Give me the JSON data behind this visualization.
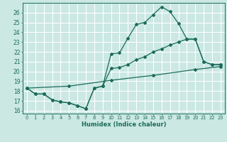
{
  "xlabel": "Humidex (Indice chaleur)",
  "background_color": "#cbe8e3",
  "grid_color": "#ffffff",
  "line_color": "#1a6b5a",
  "xlim": [
    -0.5,
    23.5
  ],
  "ylim": [
    15.7,
    27.0
  ],
  "xticks": [
    0,
    1,
    2,
    3,
    4,
    5,
    6,
    7,
    8,
    9,
    10,
    11,
    12,
    13,
    14,
    15,
    16,
    17,
    18,
    19,
    20,
    21,
    22,
    23
  ],
  "yticks": [
    16,
    17,
    18,
    19,
    20,
    21,
    22,
    23,
    24,
    25,
    26
  ],
  "line1_x": [
    0,
    1,
    2,
    3,
    4,
    5,
    6,
    7,
    8,
    9,
    10,
    11,
    12,
    13,
    14,
    15,
    16,
    17,
    18,
    19,
    20,
    21,
    22,
    23
  ],
  "line1_y": [
    18.3,
    17.7,
    17.7,
    17.1,
    16.9,
    16.8,
    16.5,
    16.2,
    18.3,
    18.5,
    21.8,
    21.9,
    23.4,
    24.8,
    25.0,
    25.8,
    26.6,
    26.1,
    24.9,
    23.3,
    23.3,
    21.0,
    20.7,
    20.7
  ],
  "line2_x": [
    0,
    1,
    2,
    3,
    4,
    5,
    6,
    7,
    8,
    9,
    10,
    11,
    12,
    13,
    14,
    15,
    16,
    17,
    18,
    19,
    20,
    21,
    22,
    23
  ],
  "line2_y": [
    18.3,
    17.7,
    17.7,
    17.1,
    16.9,
    16.8,
    16.5,
    16.2,
    18.3,
    18.5,
    20.3,
    20.4,
    20.7,
    21.2,
    21.5,
    22.0,
    22.3,
    22.7,
    23.0,
    23.3,
    23.3,
    21.0,
    20.7,
    20.7
  ],
  "line3_x": [
    0,
    5,
    10,
    15,
    20,
    23
  ],
  "line3_y": [
    18.3,
    18.5,
    19.1,
    19.6,
    20.2,
    20.5
  ]
}
